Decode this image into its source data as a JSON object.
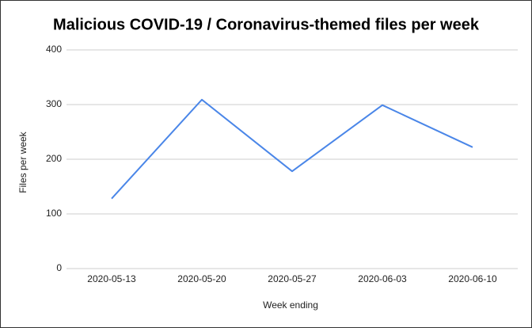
{
  "chart_data": {
    "type": "line",
    "title": "Malicious COVID-19 / Coronavirus-themed files per week",
    "x_label": "Week ending",
    "y_label": "Files per week",
    "categories": [
      "2020-05-13",
      "2020-05-20",
      "2020-05-27",
      "2020-06-03",
      "2020-06-10"
    ],
    "values": [
      128,
      309,
      178,
      299,
      222
    ],
    "color": "#4a86e8",
    "ylim": [
      0,
      400
    ],
    "yticks": [
      0,
      100,
      200,
      300,
      400
    ],
    "grid": true
  }
}
